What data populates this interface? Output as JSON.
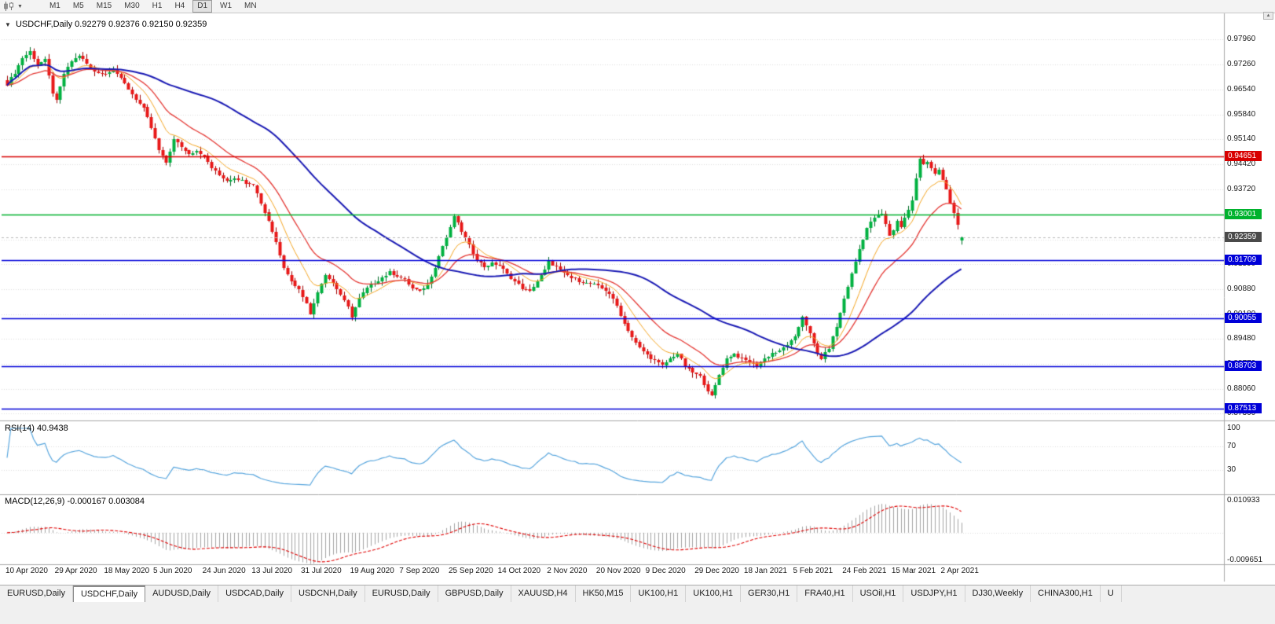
{
  "toolbar": {
    "timeframes": [
      "M1",
      "M5",
      "M15",
      "M30",
      "H1",
      "H4",
      "D1",
      "W1",
      "MN"
    ],
    "active_timeframe": "D1"
  },
  "chart_header": {
    "symbol": "USDCHF,Daily",
    "ohlc_text": "0.92279 0.92376 0.92150 0.92359"
  },
  "price_axis_labels": [
    "0.97960",
    "0.97260",
    "0.96540",
    "0.95840",
    "0.95140",
    "0.94420",
    "0.93720",
    "0.93010",
    "0.92300",
    "0.91590",
    "0.90880",
    "0.90180",
    "0.89480",
    "0.88770",
    "0.88060",
    "0.87360"
  ],
  "levels": [
    {
      "value": "0.94651",
      "num": 0.94651,
      "color": "#D80000",
      "kind": "resistance-line"
    },
    {
      "value": "0.93001",
      "num": 0.93001,
      "color": "#00B22D",
      "kind": "support-line"
    },
    {
      "value": "0.91709",
      "num": 0.91709,
      "color": "#0000D8",
      "kind": "support-line"
    },
    {
      "value": "0.90055",
      "num": 0.90055,
      "color": "#0000D8",
      "kind": "support-line"
    },
    {
      "value": "0.88703",
      "num": 0.88703,
      "color": "#0000D8",
      "kind": "support-line"
    },
    {
      "value": "0.87513",
      "num": 0.87513,
      "color": "#0000D8",
      "kind": "support-line"
    }
  ],
  "current_price": {
    "value": "0.92359",
    "num": 0.92359,
    "bg": "#4A4A4A"
  },
  "date_axis": [
    "10 Apr 2020",
    "29 Apr 2020",
    "18 May 2020",
    "5 Jun 2020",
    "24 Jun 2020",
    "13 Jul 2020",
    "31 Jul 2020",
    "19 Aug 2020",
    "7 Sep 2020",
    "25 Sep 2020",
    "14 Oct 2020",
    "2 Nov 2020",
    "20 Nov 2020",
    "9 Dec 2020",
    "29 Dec 2020",
    "18 Jan 2021",
    "5 Feb 2021",
    "24 Feb 2021",
    "15 Mar 2021",
    "2 Apr 2021"
  ],
  "rsi_panel": {
    "title": "RSI(14)",
    "value": "40.9438",
    "axis": [
      "100",
      "70",
      "30"
    ],
    "guide_levels": [
      70,
      30
    ],
    "line_color": "#58A6DE"
  },
  "macd_panel": {
    "title": "MACD(12,26,9)",
    "values": "-0.000167 0.003084",
    "axis_max": "0.010933",
    "axis_min": "-0.009651",
    "hist_color": "#A3A3A3",
    "signal_color": "#E00000"
  },
  "tabs": [
    "EURUSD,Daily",
    "USDCHF,Daily",
    "AUDUSD,Daily",
    "USDCAD,Daily",
    "USDCNH,Daily",
    "EURUSD,Daily",
    "GBPUSD,Daily",
    "XAUUSD,H4",
    "HK50,M15",
    "UK100,H1",
    "UK100,H1",
    "GER30,H1",
    "FRA40,H1",
    "USOil,H1",
    "USDJPY,H1",
    "DJ30,Weekly",
    "CHINA300,H1",
    "U"
  ],
  "active_tab_index": 1,
  "chart_data": {
    "type": "candlestick",
    "title": "USDCHF,Daily",
    "symbol": "USDCHF",
    "timeframe": "D1",
    "visible_bars": 253,
    "ohlc_current": {
      "open": 0.92279,
      "high": 0.92376,
      "low": 0.9215,
      "close": 0.92359
    },
    "y_view": {
      "top_price": 0.98545,
      "bottom_price": 0.87215
    },
    "y_tick_labels": [
      "0.97960",
      "0.97260",
      "0.96540",
      "0.95840",
      "0.95140",
      "0.94420",
      "0.93720",
      "0.93010",
      "0.92300",
      "0.91590",
      "0.90880",
      "0.90180",
      "0.89480",
      "0.88770",
      "0.88060",
      "0.87360"
    ],
    "x_tick_labels": [
      "10 Apr 2020",
      "29 Apr 2020",
      "18 May 2020",
      "5 Jun 2020",
      "24 Jun 2020",
      "13 Jul 2020",
      "31 Jul 2020",
      "19 Aug 2020",
      "7 Sep 2020",
      "25 Sep 2020",
      "14 Oct 2020",
      "2 Nov 2020",
      "20 Nov 2020",
      "9 Dec 2020",
      "29 Dec 2020",
      "18 Jan 2021",
      "5 Feb 2021",
      "24 Feb 2021",
      "15 Mar 2021",
      "2 Apr 2021"
    ],
    "bars_per_x_tick": 13,
    "price_levels": [
      0.94651,
      0.93001,
      0.91709,
      0.90055,
      0.88703,
      0.87513
    ],
    "noise": 0.0007,
    "wick_range": 0.0014,
    "close_path_anchors": [
      [
        0,
        0.967
      ],
      [
        2,
        0.9702
      ],
      [
        4,
        0.9744
      ],
      [
        6,
        0.9762
      ],
      [
        8,
        0.9725
      ],
      [
        10,
        0.9738
      ],
      [
        12,
        0.9645
      ],
      [
        13,
        0.9622
      ],
      [
        15,
        0.9698
      ],
      [
        17,
        0.9734
      ],
      [
        19,
        0.9752
      ],
      [
        21,
        0.9726
      ],
      [
        23,
        0.9706
      ],
      [
        26,
        0.9698
      ],
      [
        28,
        0.9714
      ],
      [
        30,
        0.9684
      ],
      [
        33,
        0.9642
      ],
      [
        36,
        0.9601
      ],
      [
        38,
        0.9546
      ],
      [
        40,
        0.9482
      ],
      [
        42,
        0.9448
      ],
      [
        44,
        0.9512
      ],
      [
        46,
        0.9492
      ],
      [
        48,
        0.9473
      ],
      [
        50,
        0.9481
      ],
      [
        52,
        0.9464
      ],
      [
        54,
        0.9432
      ],
      [
        56,
        0.9412
      ],
      [
        58,
        0.9396
      ],
      [
        60,
        0.9406
      ],
      [
        63,
        0.9392
      ],
      [
        65,
        0.9386
      ],
      [
        67,
        0.9332
      ],
      [
        69,
        0.9282
      ],
      [
        71,
        0.9222
      ],
      [
        73,
        0.9152
      ],
      [
        75,
        0.9112
      ],
      [
        77,
        0.9086
      ],
      [
        79,
        0.9052
      ],
      [
        80,
        0.9016
      ],
      [
        82,
        0.9082
      ],
      [
        84,
        0.9132
      ],
      [
        86,
        0.9106
      ],
      [
        88,
        0.9072
      ],
      [
        90,
        0.9038
      ],
      [
        91,
        0.9012
      ],
      [
        93,
        0.9062
      ],
      [
        95,
        0.9092
      ],
      [
        97,
        0.9106
      ],
      [
        99,
        0.9122
      ],
      [
        101,
        0.9136
      ],
      [
        103,
        0.9126
      ],
      [
        105,
        0.9116
      ],
      [
        107,
        0.9092
      ],
      [
        109,
        0.9082
      ],
      [
        111,
        0.9102
      ],
      [
        113,
        0.9152
      ],
      [
        115,
        0.9212
      ],
      [
        117,
        0.9262
      ],
      [
        118,
        0.9296
      ],
      [
        120,
        0.9252
      ],
      [
        122,
        0.9212
      ],
      [
        124,
        0.9172
      ],
      [
        126,
        0.9152
      ],
      [
        128,
        0.9162
      ],
      [
        130,
        0.9156
      ],
      [
        132,
        0.9132
      ],
      [
        134,
        0.9112
      ],
      [
        136,
        0.9092
      ],
      [
        138,
        0.9082
      ],
      [
        140,
        0.9112
      ],
      [
        142,
        0.9142
      ],
      [
        143,
        0.9166
      ],
      [
        145,
        0.9152
      ],
      [
        147,
        0.9132
      ],
      [
        149,
        0.9122
      ],
      [
        151,
        0.9112
      ],
      [
        153,
        0.9106
      ],
      [
        155,
        0.9102
      ],
      [
        157,
        0.9092
      ],
      [
        159,
        0.9076
      ],
      [
        161,
        0.9042
      ],
      [
        163,
        0.8992
      ],
      [
        165,
        0.8952
      ],
      [
        167,
        0.8922
      ],
      [
        169,
        0.8902
      ],
      [
        171,
        0.8886
      ],
      [
        173,
        0.8872
      ],
      [
        175,
        0.8892
      ],
      [
        177,
        0.8906
      ],
      [
        179,
        0.8872
      ],
      [
        181,
        0.8852
      ],
      [
        183,
        0.8842
      ],
      [
        185,
        0.8802
      ],
      [
        186,
        0.8786
      ],
      [
        188,
        0.8846
      ],
      [
        190,
        0.8892
      ],
      [
        192,
        0.8906
      ],
      [
        194,
        0.8892
      ],
      [
        196,
        0.8882
      ],
      [
        198,
        0.8872
      ],
      [
        200,
        0.8892
      ],
      [
        202,
        0.8908
      ],
      [
        204,
        0.8912
      ],
      [
        206,
        0.8932
      ],
      [
        208,
        0.8952
      ],
      [
        209,
        0.8982
      ],
      [
        210,
        0.9012
      ],
      [
        212,
        0.8962
      ],
      [
        214,
        0.8906
      ],
      [
        215,
        0.8892
      ],
      [
        217,
        0.8922
      ],
      [
        219,
        0.8982
      ],
      [
        221,
        0.9062
      ],
      [
        223,
        0.9132
      ],
      [
        225,
        0.9202
      ],
      [
        227,
        0.9262
      ],
      [
        229,
        0.9292
      ],
      [
        231,
        0.9302
      ],
      [
        232,
        0.9272
      ],
      [
        233,
        0.9242
      ],
      [
        234,
        0.9256
      ],
      [
        235,
        0.9282
      ],
      [
        236,
        0.9266
      ],
      [
        237,
        0.9292
      ],
      [
        238,
        0.9312
      ],
      [
        239,
        0.9342
      ],
      [
        240,
        0.9402
      ],
      [
        241,
        0.9456
      ],
      [
        242,
        0.9442
      ],
      [
        243,
        0.9452
      ],
      [
        244,
        0.9432
      ],
      [
        245,
        0.9416
      ],
      [
        246,
        0.9426
      ],
      [
        247,
        0.9396
      ],
      [
        248,
        0.9372
      ],
      [
        249,
        0.9332
      ],
      [
        250,
        0.9302
      ],
      [
        251,
        0.9272
      ],
      [
        252,
        0.92359
      ]
    ],
    "indicators": {
      "ma": [
        {
          "type": "ema",
          "period": 10,
          "color": "#F5A623",
          "width": 1
        },
        {
          "type": "ema",
          "period": 21,
          "color": "#E53935",
          "width": 1.3
        },
        {
          "type": "sma",
          "period": 55,
          "color": "#1A1AB4",
          "width": 2
        }
      ],
      "rsi": {
        "period": 14,
        "last": 40.9438
      },
      "macd": {
        "fast": 12,
        "slow": 26,
        "signal": 9,
        "last": -0.000167,
        "signal_last": 0.003084
      }
    }
  }
}
